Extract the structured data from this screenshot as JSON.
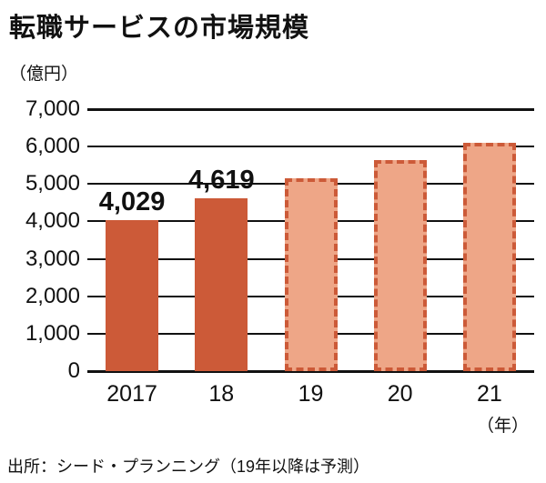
{
  "title": "転職サービスの市場規模",
  "unit_label": "（億円）",
  "x_axis_unit": "（年）",
  "source": "出所：シード・プランニング（19年以降は予測）",
  "colors": {
    "bar_solid": "#cc5a38",
    "bar_forecast_fill": "#eea687",
    "bar_forecast_border": "#cc5a38",
    "axis_line": "#111111",
    "text": "#111111"
  },
  "chart_data": {
    "type": "bar",
    "title": "転職サービスの市場規模",
    "ylabel": "（億円）",
    "xlabel": "（年）",
    "categories": [
      "2017",
      "18",
      "19",
      "20",
      "21"
    ],
    "values": [
      4029,
      4619,
      5150,
      5650,
      6100
    ],
    "labels": [
      "4,029",
      "4,619",
      "",
      "",
      ""
    ],
    "forecast": [
      false,
      false,
      true,
      true,
      true
    ],
    "ylim": [
      0,
      7000
    ],
    "yticks": [
      0,
      1000,
      2000,
      3000,
      4000,
      5000,
      6000,
      7000
    ],
    "ytick_labels": [
      "0",
      "1,000",
      "2,000",
      "3,000",
      "4,000",
      "5,000",
      "6,000",
      "7,000"
    ],
    "grid": true,
    "legend": "none",
    "note": "19年以降は予測（破線の棒）"
  }
}
